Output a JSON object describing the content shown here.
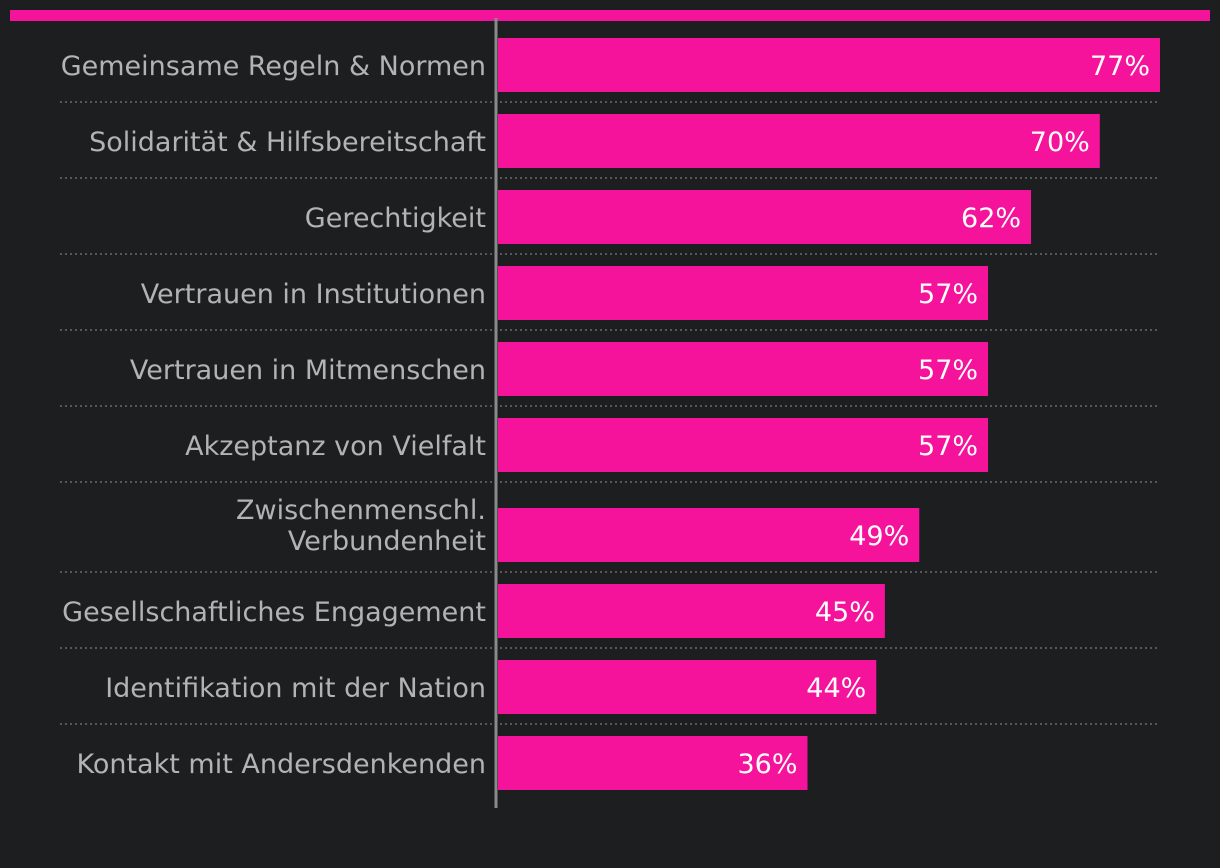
{
  "chart_data": {
    "type": "bar",
    "orientation": "horizontal",
    "categories": [
      [
        "Gemeinsame Regeln & Normen"
      ],
      [
        "Solidarität & Hilfsbereitschaft"
      ],
      [
        "Gerechtigkeit"
      ],
      [
        "Vertrauen in Institutionen"
      ],
      [
        "Vertrauen in Mitmenschen"
      ],
      [
        "Akzeptanz von Vielfalt"
      ],
      [
        "Zwischenmenschl.",
        "Verbundenheit"
      ],
      [
        "Gesellschaftliches Engagement"
      ],
      [
        "Identifikation mit der Nation"
      ],
      [
        "Kontakt mit Andersdenkenden"
      ]
    ],
    "values": [
      77,
      70,
      62,
      57,
      57,
      57,
      49,
      45,
      44,
      36
    ],
    "value_labels": [
      "77%",
      "70%",
      "62%",
      "57%",
      "57%",
      "57%",
      "49%",
      "45%",
      "44%",
      "36%"
    ],
    "unit": "%",
    "xlim": [
      0,
      77
    ],
    "grid": false,
    "legend": "none",
    "colors": {
      "background": "#1d1e20",
      "bar": "#f5139b",
      "accent_stripe": "#f5139b",
      "category_text": "#b3b3b3",
      "value_text": "#ffffff",
      "axis": "#8a8a8a",
      "separator": "#6a6a6a"
    }
  }
}
